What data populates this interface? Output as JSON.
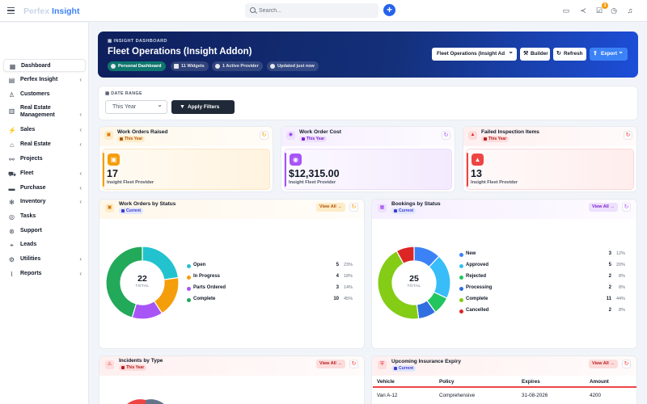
{
  "topbar": {
    "brand_part1": "Perfex",
    "brand_part2": "Insight",
    "search_placeholder": "Search...",
    "notification_count": "3",
    "icons": [
      "hamburger-icon",
      "search-icon",
      "plus-icon",
      "credit-card-icon",
      "share-icon",
      "checkbox-icon",
      "clock-icon",
      "bell-icon"
    ]
  },
  "sidebar": {
    "items": [
      {
        "label": "Dashboard",
        "icon": "dashboard-icon",
        "active": true,
        "chevron": false
      },
      {
        "label": "Perfex Insight",
        "icon": "chart-icon",
        "chevron": true
      },
      {
        "label": "Customers",
        "icon": "user-icon",
        "chevron": false
      },
      {
        "label": "Real Estate Management",
        "icon": "building-icon",
        "chevron": true
      },
      {
        "label": "Sales",
        "icon": "bolt-icon",
        "chevron": true
      },
      {
        "label": "Real Estate",
        "icon": "home-icon",
        "chevron": true
      },
      {
        "label": "Projects",
        "icon": "projects-icon",
        "chevron": false
      },
      {
        "label": "Fleet",
        "icon": "truck-icon",
        "chevron": true
      },
      {
        "label": "Purchase",
        "icon": "cart-icon",
        "chevron": true
      },
      {
        "label": "Inventory",
        "icon": "cog-icon",
        "chevron": true
      },
      {
        "label": "Tasks",
        "icon": "check-circle-icon",
        "chevron": false
      },
      {
        "label": "Support",
        "icon": "lifebuoy-icon",
        "chevron": false
      },
      {
        "label": "Leads",
        "icon": "tag-icon",
        "chevron": false
      },
      {
        "label": "Utilities",
        "icon": "settings-icon",
        "chevron": true
      },
      {
        "label": "Reports",
        "icon": "line-chart-icon",
        "chevron": true
      }
    ]
  },
  "hero": {
    "kicker": "INSIGHT DASHBOARD",
    "title": "Fleet Operations (Insight Addon)",
    "pills": [
      "Personal Dashboard",
      "11 Widgets",
      "1 Active Provider",
      "Updated just now"
    ],
    "dashboard_select": "Fleet Operations (Insight Ad",
    "builder_label": "Builder",
    "refresh_label": "Refresh",
    "export_label": "Export"
  },
  "filters": {
    "label": "DATE RANGE",
    "range_value": "This Year",
    "apply_label": "Apply Filters"
  },
  "kpis": [
    {
      "title": "Work Orders Raised",
      "tag": "This Year",
      "value": "17",
      "sub": "Insight Fleet Provider",
      "color": "#f59e0b"
    },
    {
      "title": "Work Order Cost",
      "tag": "This Year",
      "value": "$12,315.00",
      "sub": "Insight Fleet Provider",
      "color": "#a855f7"
    },
    {
      "title": "Failed Inspection Items",
      "tag": "This Year",
      "value": "13",
      "sub": "Insight Fleet Provider",
      "color": "#ef4444"
    }
  ],
  "work_orders": {
    "title": "Work Orders by Status",
    "tag": "Current",
    "view_all": "View All",
    "total_label": "TOTAL",
    "total": "22"
  },
  "bookings": {
    "title": "Bookings by Status",
    "tag": "Current",
    "view_all": "View All",
    "total_label": "TOTAL",
    "total": "25"
  },
  "incidents": {
    "title": "Incidents by Type",
    "tag": "This Year",
    "view_all": "View All"
  },
  "insurance": {
    "title": "Upcoming Insurance Expiry",
    "tag": "Current",
    "view_all": "View All",
    "columns": [
      "Vehicle",
      "Policy",
      "Expires",
      "Amount"
    ],
    "rows": [
      {
        "vehicle": "Van A-12",
        "policy": "Comprehensive",
        "expires": "31-08-2026",
        "amount": "4200"
      }
    ]
  },
  "chart_data": [
    {
      "type": "pie",
      "title": "Work Orders by Status",
      "categories": [
        "Open",
        "In Progress",
        "Parts Ordered",
        "Complete"
      ],
      "values": [
        5,
        4,
        3,
        10
      ],
      "percents": [
        "23%",
        "18%",
        "14%",
        "45%"
      ],
      "colors": [
        "#22c3cf",
        "#f59e0b",
        "#a855f7",
        "#22a95a"
      ],
      "legend": "right"
    },
    {
      "type": "pie",
      "title": "Bookings by Status",
      "categories": [
        "New",
        "Approved",
        "Rejected",
        "Processing",
        "Complete",
        "Cancelled"
      ],
      "values": [
        3,
        5,
        2,
        2,
        11,
        2
      ],
      "percents": [
        "12%",
        "20%",
        "8%",
        "8%",
        "44%",
        "8%"
      ],
      "colors": [
        "#3b82f6",
        "#38bdf8",
        "#22c55e",
        "#2f6fe0",
        "#84cc16",
        "#dc2626"
      ],
      "legend": "right"
    }
  ]
}
